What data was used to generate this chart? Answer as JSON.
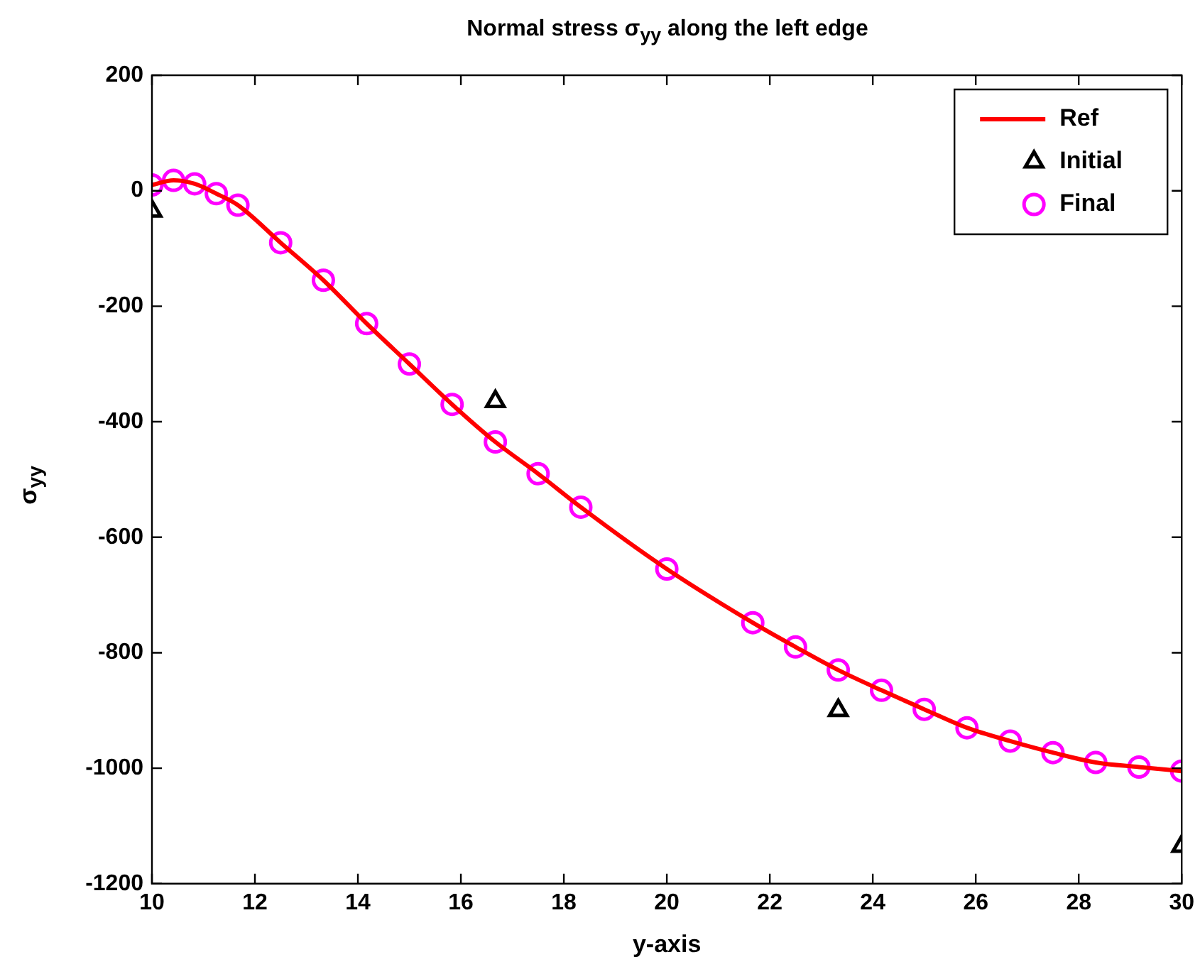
{
  "chart_data": {
    "type": "line",
    "title": "Normal stress σ$_{yy}$ along the left edge",
    "xlabel": "y-axis",
    "ylabel": "σ$_{yy}$",
    "xlim": [
      10,
      30
    ],
    "xticks": [
      10,
      12,
      14,
      16,
      18,
      20,
      22,
      24,
      26,
      28,
      30
    ],
    "ylim": [
      -1200,
      200
    ],
    "yticks": [
      -1200,
      -1000,
      -800,
      -600,
      -400,
      -200,
      0,
      200
    ],
    "legend": "top right",
    "series": [
      {
        "name": "Ref",
        "type": "line",
        "color": "#ff0000",
        "marker": "none",
        "line_style": "solid",
        "x": [
          10,
          10.42,
          10.83,
          11.25,
          11.67,
          12.5,
          13.33,
          14.17,
          15,
          15.83,
          16.67,
          17.5,
          18.33,
          20,
          21.67,
          22.5,
          23.33,
          24.17,
          25,
          25.83,
          26.67,
          27.5,
          28.33,
          29.17,
          30
        ],
        "values": [
          10,
          18,
          12,
          -5,
          -25,
          -90,
          -155,
          -230,
          -300,
          -370,
          -435,
          -490,
          -548,
          -655,
          -748,
          -790,
          -830,
          -865,
          -898,
          -930,
          -953,
          -973,
          -990,
          -998,
          -1005
        ]
      },
      {
        "name": "Initial",
        "type": "scatter",
        "color": "#000000",
        "marker": "triangle",
        "x": [
          10,
          16.67,
          23.33,
          30
        ],
        "values": [
          -35,
          -365,
          -900,
          -1135
        ]
      },
      {
        "name": "Final",
        "type": "scatter",
        "color": "#ff00ff",
        "marker": "circle",
        "x": [
          10,
          10.42,
          10.83,
          11.25,
          11.67,
          12.5,
          13.33,
          14.17,
          15,
          15.83,
          16.67,
          17.5,
          18.33,
          20,
          21.67,
          22.5,
          23.33,
          24.17,
          25,
          25.83,
          26.67,
          27.5,
          28.33,
          29.17,
          30
        ],
        "values": [
          10,
          18,
          12,
          -5,
          -25,
          -90,
          -155,
          -230,
          -300,
          -370,
          -435,
          -490,
          -548,
          -655,
          -748,
          -790,
          -830,
          -865,
          -898,
          -930,
          -953,
          -973,
          -990,
          -998,
          -1005
        ]
      }
    ]
  }
}
